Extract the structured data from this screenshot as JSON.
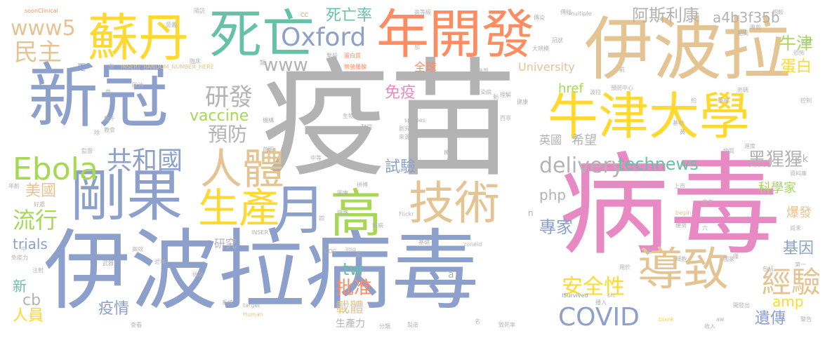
{
  "palette": {
    "gray": "#b3b3b3",
    "pink": "#e78ac3",
    "blue": "#8da0cb",
    "tan": "#e5c494",
    "yellow": "#ffd92f",
    "green": "#a6d854",
    "teal": "#66c2a5",
    "orange": "#fc8d62"
  },
  "words": [
    {
      "text": "疫苗",
      "color": "gray"
    },
    {
      "text": "病毒",
      "color": "pink"
    },
    {
      "text": "伊波拉病毒",
      "color": "blue"
    },
    {
      "text": "伊波拉",
      "color": "tan"
    },
    {
      "text": "新冠",
      "color": "blue"
    },
    {
      "text": "牛津大學",
      "color": "yellow"
    },
    {
      "text": "剛果",
      "color": "blue"
    },
    {
      "text": "蘇丹",
      "color": "yellow"
    },
    {
      "text": "死亡",
      "color": "teal"
    },
    {
      "text": "年開發",
      "color": "orange"
    },
    {
      "text": "導致",
      "color": "tan"
    },
    {
      "text": "技術",
      "color": "tan"
    },
    {
      "text": "高",
      "color": "green"
    },
    {
      "text": "人體",
      "color": "tan"
    },
    {
      "text": "生產",
      "color": "yellow"
    },
    {
      "text": "月",
      "color": "blue"
    },
    {
      "text": "Oxford",
      "color": "blue"
    },
    {
      "text": "Ebola",
      "color": "green"
    },
    {
      "text": "COVID",
      "color": "blue"
    },
    {
      "text": "經驗",
      "color": "tan"
    },
    {
      "text": "www5",
      "color": "tan"
    },
    {
      "text": "民主",
      "color": "tan"
    },
    {
      "text": "研發",
      "color": "gray"
    },
    {
      "text": "共和國",
      "color": "blue"
    },
    {
      "text": "預防",
      "color": "gray"
    },
    {
      "text": "流行",
      "color": "green"
    },
    {
      "text": "美國",
      "color": "tan"
    },
    {
      "text": "delivery",
      "color": "gray"
    },
    {
      "text": "technews",
      "color": "teal"
    },
    {
      "text": "安全性",
      "color": "yellow"
    },
    {
      "text": "死亡率",
      "color": "teal"
    },
    {
      "text": "阿斯利康",
      "color": "gray"
    },
    {
      "text": "a4b3f35b",
      "color": "gray"
    },
    {
      "text": "牛津",
      "color": "green"
    },
    {
      "text": "蛋白",
      "color": "yellow"
    },
    {
      "text": "www",
      "color": "gray"
    },
    {
      "text": "vaccine",
      "color": "green"
    },
    {
      "text": "php",
      "color": "gray"
    },
    {
      "text": "專家",
      "color": "blue"
    },
    {
      "text": "試驗",
      "color": "blue"
    },
    {
      "text": "免疫",
      "color": "pink"
    },
    {
      "text": "全球",
      "color": "orange"
    },
    {
      "text": "University",
      "color": "tan"
    },
    {
      "text": "href",
      "color": "green"
    },
    {
      "text": "英國",
      "color": "gray"
    },
    {
      "text": "希望",
      "color": "gray"
    },
    {
      "text": "黑猩猩",
      "color": "gray"
    },
    {
      "text": "科學家",
      "color": "green"
    },
    {
      "text": "爆發",
      "color": "tan"
    },
    {
      "text": "基因",
      "color": "blue"
    },
    {
      "text": "遺傳",
      "color": "blue"
    },
    {
      "text": "amp",
      "color": "yellow"
    },
    {
      "text": "tw",
      "color": "teal"
    },
    {
      "text": "批准",
      "color": "orange"
    },
    {
      "text": "載體",
      "color": "tan"
    },
    {
      "text": "生產力",
      "color": "gray"
    },
    {
      "text": "疫情",
      "color": "blue"
    },
    {
      "text": "人員",
      "color": "yellow"
    },
    {
      "text": "新",
      "color": "teal"
    },
    {
      "text": "cb",
      "color": "gray"
    },
    {
      "text": "trials",
      "color": "blue"
    },
    {
      "text": "研究",
      "color": "gray"
    },
    {
      "text": "更",
      "color": "blue"
    },
    {
      "text": "ck",
      "color": "gray"
    },
    {
      "text": "n",
      "color": "gray"
    },
    {
      "text": "a",
      "color": "gray"
    },
    {
      "text": "soonClinical",
      "color": "orange"
    },
    {
      "text": "INSERT_RANDOM_NUMBER_HERE",
      "color": "tan"
    },
    {
      "text": "INSER",
      "color": "gray"
    },
    {
      "text": "multiple",
      "color": "gray"
    },
    {
      "text": "species",
      "color": "gray"
    },
    {
      "text": "Flickr",
      "color": "gray"
    },
    {
      "text": "img",
      "color": "gray"
    },
    {
      "text": "CDC",
      "color": "gray"
    },
    {
      "text": "zoneid",
      "color": "gray"
    },
    {
      "text": "begin",
      "color": "tan"
    },
    {
      "text": "ISurvived",
      "color": "blue"
    },
    {
      "text": "src",
      "color": "gray"
    },
    {
      "text": "target",
      "color": "gray"
    },
    {
      "text": "Human",
      "color": "tan"
    },
    {
      "text": "blank",
      "color": "yellow"
    },
    {
      "text": "aw",
      "color": "gray"
    },
    {
      "text": "CC",
      "color": "orange"
    },
    {
      "text": "高等級",
      "color": "gray"
    },
    {
      "text": "隨訪",
      "color": "gray"
    },
    {
      "text": "意義",
      "color": "gray"
    },
    {
      "text": "臨床",
      "color": "gray"
    },
    {
      "text": "數",
      "color": "gray"
    },
    {
      "text": "撃殺",
      "color": "gray"
    },
    {
      "text": "蛋白質",
      "color": "orange"
    },
    {
      "text": "無螢羅腺",
      "color": "orange"
    },
    {
      "text": "歐洲",
      "color": "gray"
    },
    {
      "text": "生物",
      "color": "gray"
    },
    {
      "text": "染病",
      "color": "gray"
    },
    {
      "text": "理解",
      "color": "gray"
    },
    {
      "text": "預防中心",
      "color": "gray"
    },
    {
      "text": "傳染",
      "color": "gray"
    },
    {
      "text": "冠狀",
      "color": "gray"
    },
    {
      "text": "大規模",
      "color": "gray"
    },
    {
      "text": "相較",
      "color": "gray"
    },
    {
      "text": "表面",
      "color": "gray"
    },
    {
      "text": "恐怖",
      "color": "gray"
    },
    {
      "text": "控制",
      "color": "gray"
    },
    {
      "text": "密碼",
      "color": "gray"
    },
    {
      "text": "藥廠",
      "color": "gray"
    },
    {
      "text": "基地",
      "color": "gray"
    },
    {
      "text": "資料庫",
      "color": "gray"
    },
    {
      "text": "上市",
      "color": "gray"
    },
    {
      "text": "六",
      "color": "gray"
    },
    {
      "text": "尚未",
      "color": "gray"
    },
    {
      "text": "國家",
      "color": "gray"
    },
    {
      "text": "包括",
      "color": "gray"
    },
    {
      "text": "第一",
      "color": "gray"
    },
    {
      "text": "警告",
      "color": "gray"
    },
    {
      "text": "開發出",
      "color": "gray"
    },
    {
      "text": "收入",
      "color": "gray"
    },
    {
      "text": "致死率",
      "color": "gray"
    },
    {
      "text": "製造",
      "color": "gray"
    },
    {
      "text": "名",
      "color": "gray"
    },
    {
      "text": "系統",
      "color": "gray"
    },
    {
      "text": "估計",
      "color": "gray"
    },
    {
      "text": "注射",
      "color": "gray"
    },
    {
      "text": "武器",
      "color": "gray"
    },
    {
      "text": "年齡",
      "color": "gray"
    },
    {
      "text": "高效",
      "color": "gray"
    },
    {
      "text": "近年",
      "color": "gray"
    },
    {
      "text": "中",
      "color": "gray"
    },
    {
      "text": "免疫力",
      "color": "gray"
    },
    {
      "text": "好處",
      "color": "gray"
    },
    {
      "text": "監督",
      "color": "gray"
    },
    {
      "text": "教會",
      "color": "gray"
    },
    {
      "text": "數千",
      "color": "gray"
    },
    {
      "text": "除",
      "color": "gray"
    },
    {
      "text": "機構",
      "color": "gray"
    },
    {
      "text": "首圖",
      "color": "gray"
    },
    {
      "text": "西非",
      "color": "gray"
    },
    {
      "text": "健康",
      "color": "gray"
    },
    {
      "text": "剩",
      "color": "gray"
    },
    {
      "text": "剝究",
      "color": "gray"
    },
    {
      "text": "來源",
      "color": "gray"
    },
    {
      "text": "擁有",
      "color": "gray"
    },
    {
      "text": "醫聖",
      "color": "gray"
    },
    {
      "text": "圖庫",
      "color": "gray"
    },
    {
      "text": "拼搏",
      "color": "gray"
    },
    {
      "text": "鏈路",
      "color": "gray"
    },
    {
      "text": "疾病",
      "color": "gray"
    },
    {
      "text": "基礎",
      "color": "gray"
    },
    {
      "text": "三",
      "color": "gray"
    },
    {
      "text": "四",
      "color": "gray"
    },
    {
      "text": "僅",
      "color": "gray"
    },
    {
      "text": "細胞",
      "color": "gray"
    },
    {
      "text": "用於",
      "color": "gray"
    },
    {
      "text": "期",
      "color": "gray"
    },
    {
      "text": "優勢",
      "color": "gray"
    },
    {
      "text": "去年",
      "color": "gray"
    },
    {
      "text": "物質",
      "color": "gray"
    },
    {
      "text": "進度",
      "color": "gray"
    },
    {
      "text": "黃",
      "color": "gray"
    },
    {
      "text": "約",
      "color": "gray"
    },
    {
      "text": "參與",
      "color": "gray"
    },
    {
      "text": "期間",
      "color": "gray"
    },
    {
      "text": "專款",
      "color": "gray"
    },
    {
      "text": "波拉",
      "color": "gray"
    },
    {
      "text": "前",
      "color": "gray"
    },
    {
      "text": "加",
      "color": "gray"
    },
    {
      "text": "傳給",
      "color": "gray"
    },
    {
      "text": "類",
      "color": "gray"
    },
    {
      "text": "首",
      "color": "gray"
    },
    {
      "text": "查看",
      "color": "gray"
    },
    {
      "text": "播入",
      "color": "gray"
    },
    {
      "text": "中等",
      "color": "gray"
    },
    {
      "text": "製程",
      "color": "gray"
    },
    {
      "text": "分類",
      "color": "gray"
    }
  ]
}
